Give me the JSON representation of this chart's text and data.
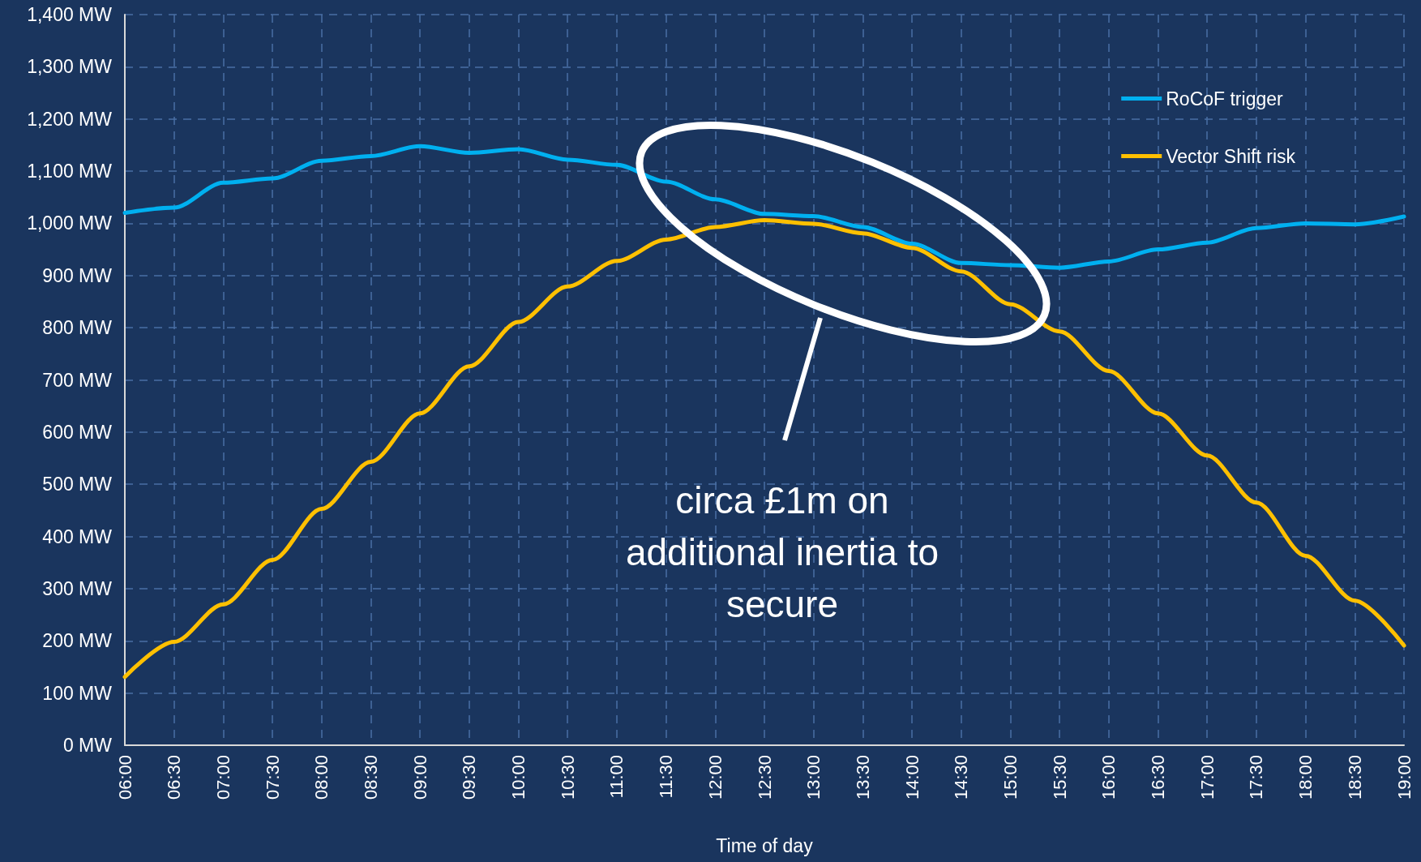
{
  "chart_data": {
    "type": "line",
    "xlabel": "Time of day",
    "categories": [
      "06:00",
      "06:30",
      "07:00",
      "07:30",
      "08:00",
      "08:30",
      "09:00",
      "09:30",
      "10:00",
      "10:30",
      "11:00",
      "11:30",
      "12:00",
      "12:30",
      "13:00",
      "13:30",
      "14:00",
      "14:30",
      "15:00",
      "15:30",
      "16:00",
      "16:30",
      "17:00",
      "17:30",
      "18:00",
      "18:30",
      "19:00"
    ],
    "series": [
      {
        "name": "RoCoF trigger",
        "color": "#00b0f0",
        "values": [
          1020,
          1030,
          1078,
          1086,
          1120,
          1129,
          1148,
          1135,
          1142,
          1122,
          1112,
          1080,
          1046,
          1018,
          1014,
          993,
          961,
          924,
          920,
          915,
          927,
          950,
          963,
          991,
          1000,
          998,
          1013
        ]
      },
      {
        "name": "Vector Shift risk",
        "color": "#ffc000",
        "values": [
          131,
          198,
          270,
          355,
          453,
          543,
          636,
          726,
          811,
          879,
          928,
          969,
          993,
          1006,
          999,
          981,
          953,
          908,
          845,
          793,
          717,
          636,
          555,
          465,
          363,
          277,
          191
        ]
      }
    ],
    "ylim": [
      0,
      1400
    ],
    "yticks": [
      {
        "value": 0,
        "label": "0 MW"
      },
      {
        "value": 100,
        "label": "100 MW"
      },
      {
        "value": 200,
        "label": "200 MW"
      },
      {
        "value": 300,
        "label": "300 MW"
      },
      {
        "value": 400,
        "label": "400 MW"
      },
      {
        "value": 500,
        "label": "500 MW"
      },
      {
        "value": 600,
        "label": "600 MW"
      },
      {
        "value": 700,
        "label": "700 MW"
      },
      {
        "value": 800,
        "label": "800 MW"
      },
      {
        "value": 900,
        "label": "900 MW"
      },
      {
        "value": 1000,
        "label": "1,000 MW"
      },
      {
        "value": 1100,
        "label": "1,100 MW"
      },
      {
        "value": 1200,
        "label": "1,200 MW"
      },
      {
        "value": 1300,
        "label": "1,300 MW"
      },
      {
        "value": 1400,
        "label": "1,400 MW"
      }
    ],
    "grid": true,
    "legend": "top right",
    "marker": "none",
    "line_style": "solid",
    "annotations": [
      "circa £1m on additional inertia to secure"
    ]
  }
}
